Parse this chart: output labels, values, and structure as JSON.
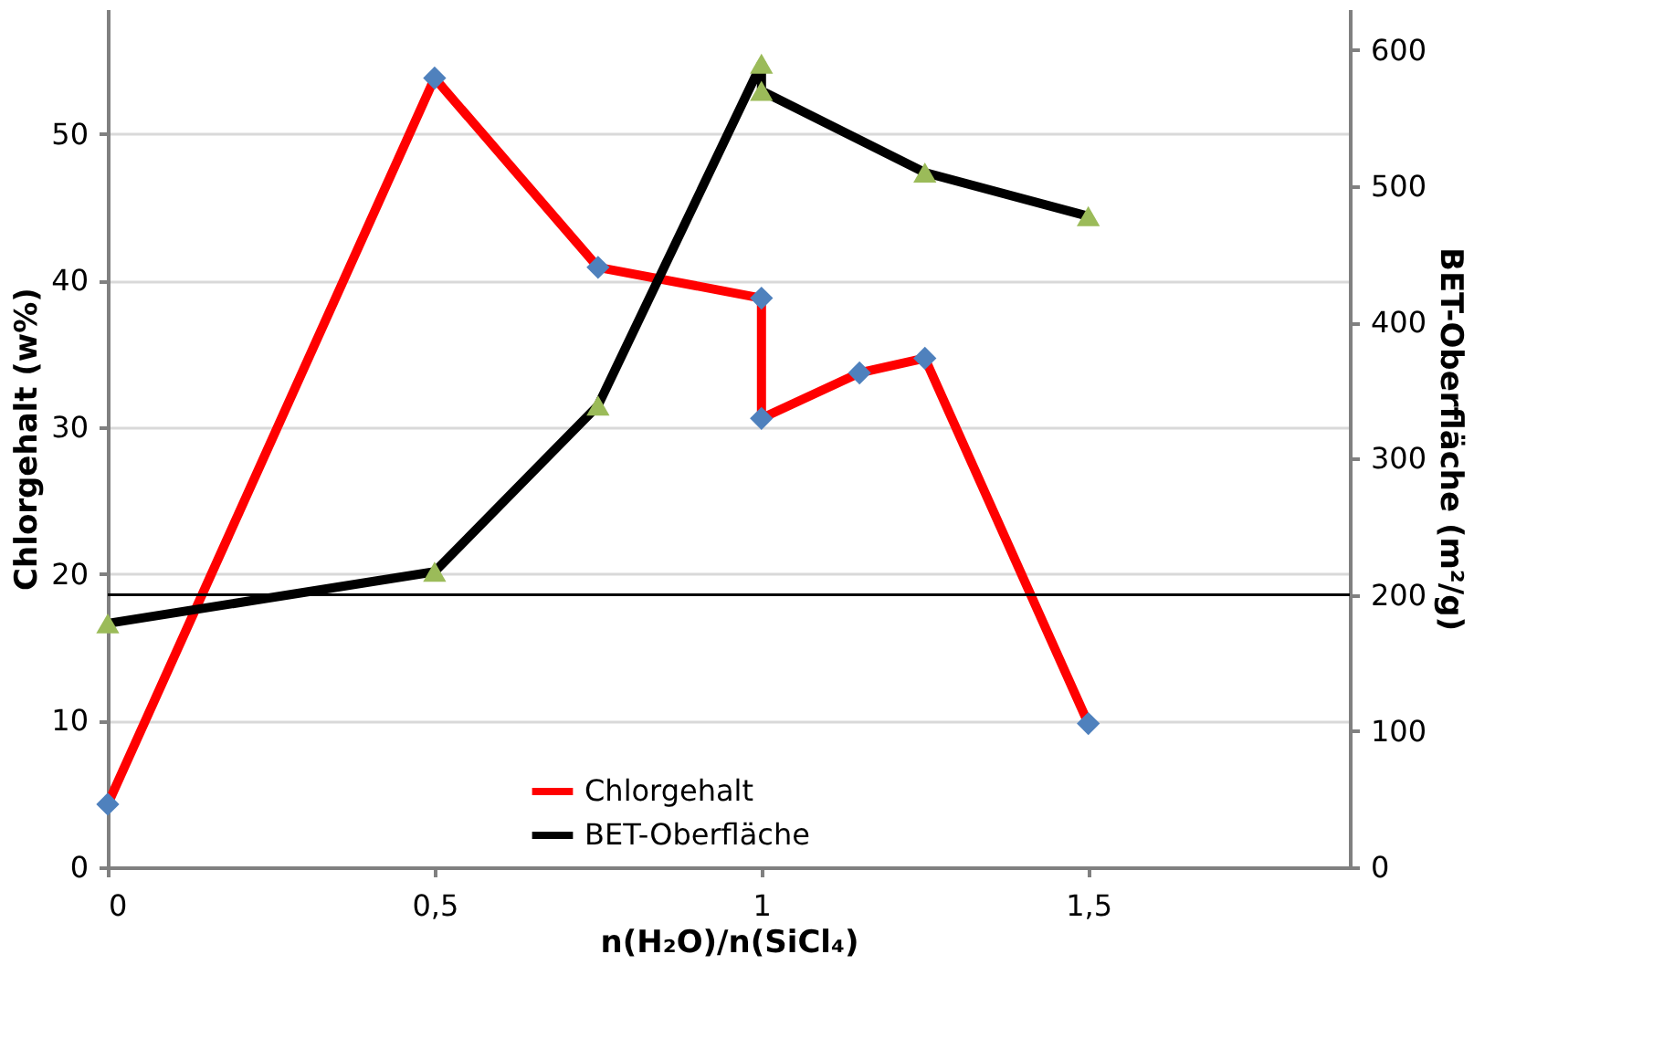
{
  "chart_data": {
    "type": "line",
    "xlabel": "n(H₂O)/n(SiCl₄)",
    "ylabel": "Chlorgehalt (w%)",
    "y2label": "BET-Oberfläche (m²/g)",
    "xlim": [
      0,
      1.9
    ],
    "xticks": [
      0,
      {
        "value": 0.5,
        "label": "0,5"
      },
      1,
      {
        "value": 1.5,
        "label": "1,5"
      }
    ],
    "ylim": [
      0,
      58.5
    ],
    "yticks": [
      0,
      10,
      20,
      30,
      40,
      50
    ],
    "y2lim": [
      0,
      630
    ],
    "y2ticks": [
      0,
      100,
      200,
      300,
      400,
      500,
      600
    ],
    "grid": "y",
    "legend": "bottom",
    "line_style": "solid",
    "ref_lines": [
      {
        "axis": "y2",
        "value": 200,
        "color": "#000000"
      }
    ],
    "series": [
      {
        "name": "Chlorgehalt",
        "color": "#ff0000",
        "marker": "diamond",
        "colors": [
          "#4f81bd",
          "#4f81bd",
          "#4f81bd",
          "#4f81bd",
          "#4f81bd",
          "#4f81bd",
          "#4f81bd",
          "#4f81bd"
        ],
        "x": [
          0,
          0.5,
          0.75,
          1,
          1,
          1.15,
          1.25,
          1.5
        ],
        "values": [
          4.3,
          53.8,
          40.9,
          38.8,
          30.6,
          33.7,
          34.7,
          9.8
        ]
      },
      {
        "name": "BET-Oberfläche",
        "axis": "y2",
        "color": "#000000",
        "marker": "triangle",
        "colors": [
          "#9bbb59",
          "#9bbb59",
          "#9bbb59",
          "#9bbb59",
          "#9bbb59",
          "#9bbb59",
          "#9bbb59"
        ],
        "x": [
          0,
          0.5,
          0.75,
          1,
          1,
          1.25,
          1.5
        ],
        "values": [
          179,
          217,
          339,
          590,
          570,
          510,
          478
        ]
      }
    ]
  }
}
